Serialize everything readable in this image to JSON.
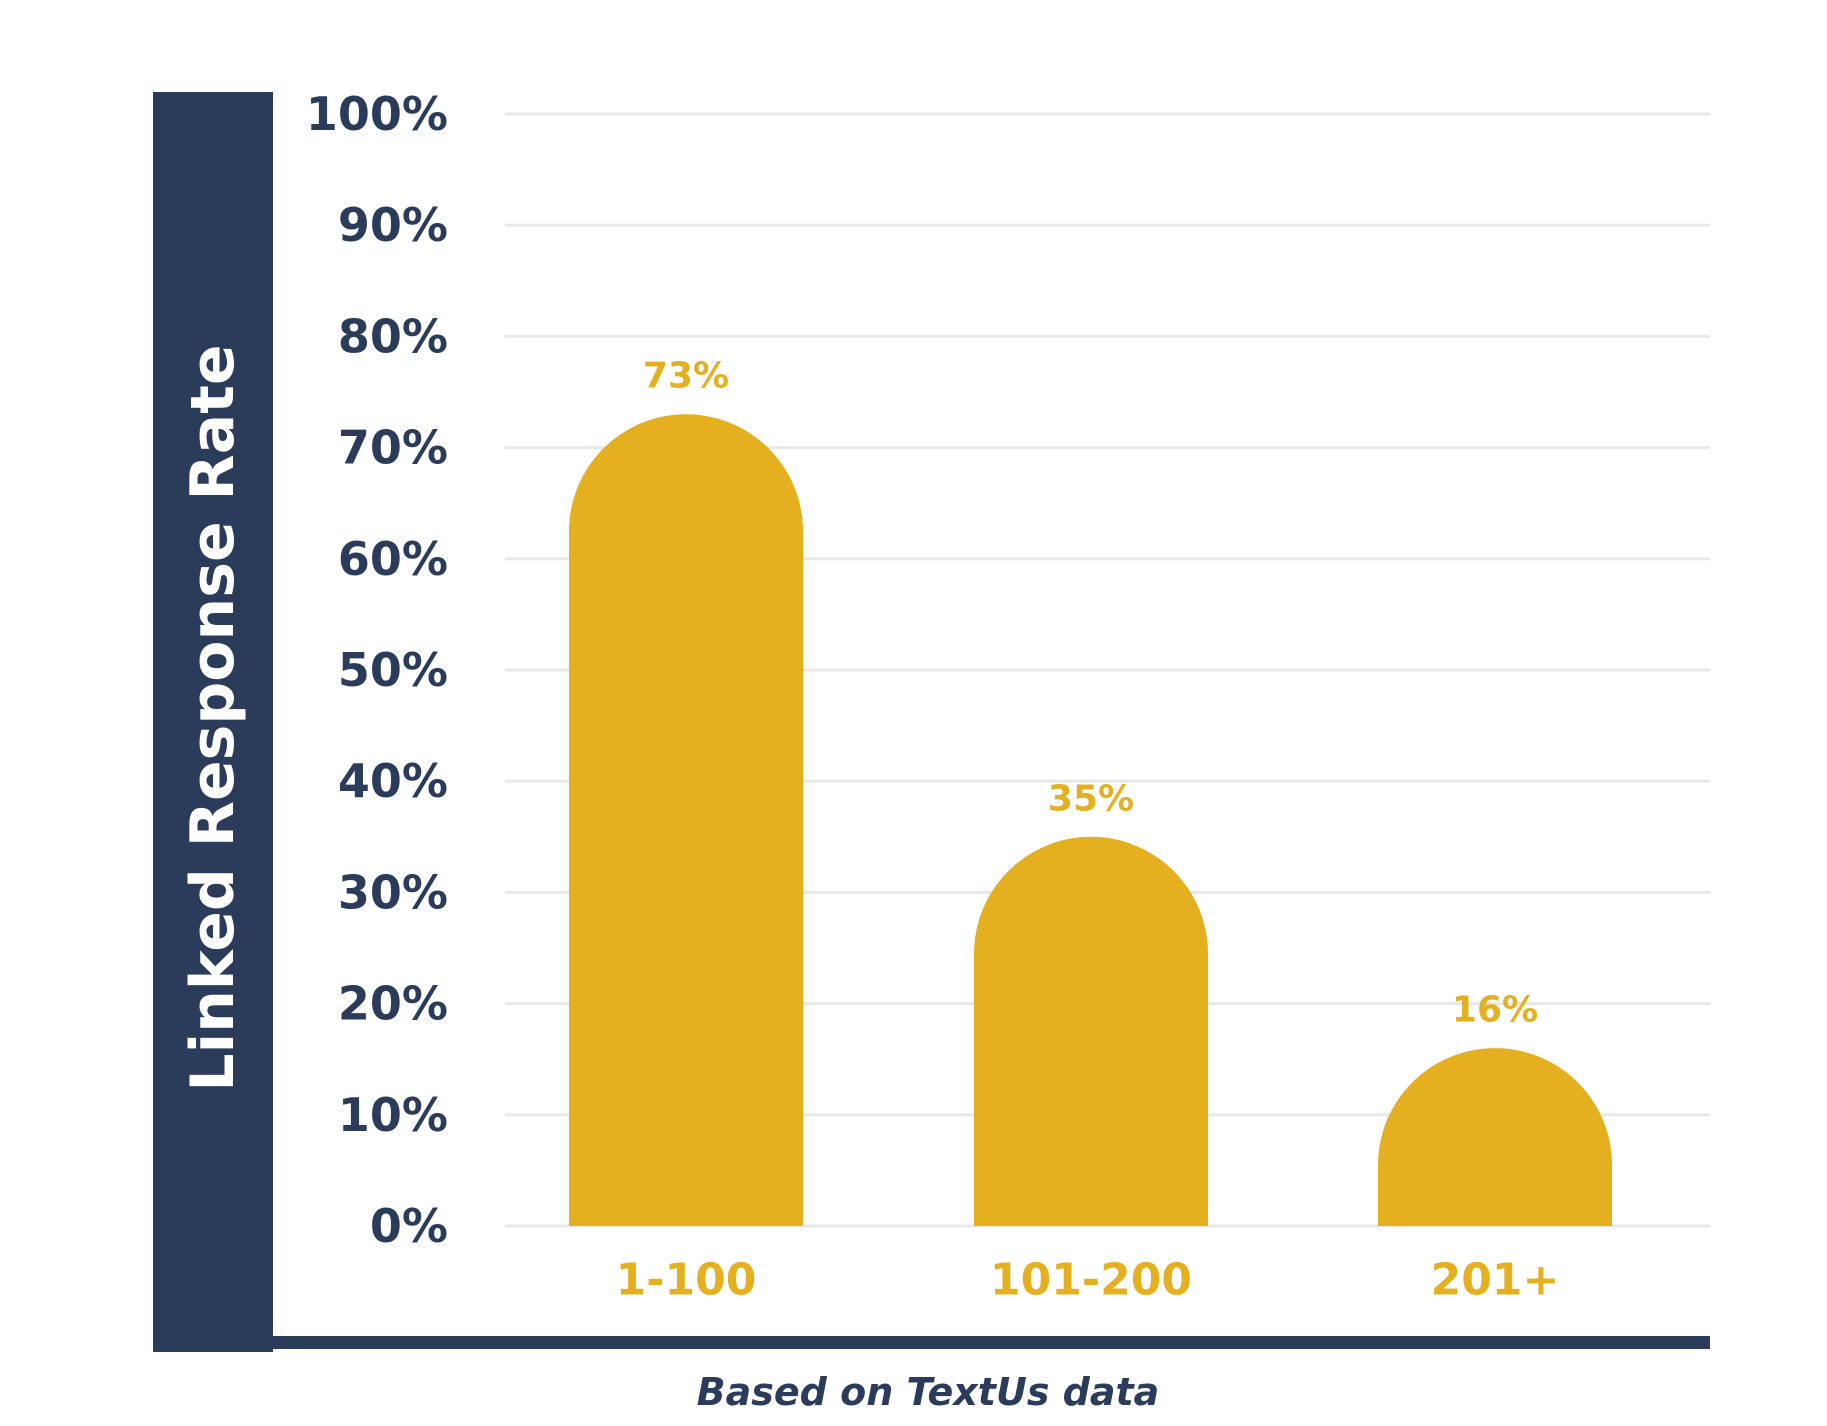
{
  "chart_data": {
    "type": "bar",
    "categories": [
      "1-100",
      "101-200",
      "201+"
    ],
    "values": [
      73,
      35,
      16
    ],
    "data_labels": [
      "73%",
      "35%",
      "16%"
    ],
    "ylabel": "Linked Response Rate",
    "ylim": [
      0,
      100
    ],
    "yticks": [
      "0%",
      "10%",
      "20%",
      "30%",
      "40%",
      "50%",
      "60%",
      "70%",
      "80%",
      "90%",
      "100%"
    ],
    "grid": true,
    "caption": "Based on TextUs data"
  },
  "colors": {
    "bar": "#E5B020",
    "axis_panel": "#2B3C5B",
    "tick_text": "#2B3C5B",
    "grid": "#E8E8E8",
    "data_label": "#E5B020",
    "category_label": "#E5B020",
    "ylabel_text": "#FFFFFF"
  }
}
